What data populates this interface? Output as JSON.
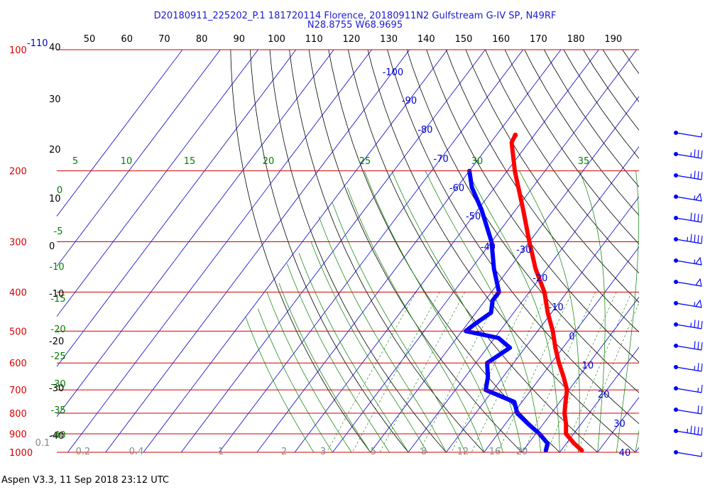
{
  "title_line1": "D20180911_225202_P.1 181720114 Florence, 20180911N2 Gulfstream G-IV SP, N49RF",
  "title_line2": "N28.8755 W68.9695",
  "footer": "Aspen V3.3, 11 Sep 2018  23:12 UTC",
  "colors": {
    "isobar": "#d40000",
    "temperature_profile": "#ff0000",
    "dewpoint_profile": "#0000ff",
    "isotherm": "#0000cc",
    "dry_adiabat": "#000000",
    "moist_adiabat": "#008000",
    "mixing_ratio": "#2e8b2e",
    "mixing_ratio_label": "#888888",
    "title": "#1a1ad6"
  },
  "chart_data": {
    "type": "skew-t log-p sounding",
    "y_axis": {
      "pressure_labels_hPa": [
        "100",
        "200",
        "300",
        "400",
        "500",
        "600",
        "700",
        "800",
        "900",
        "1000"
      ],
      "pressure_values_hPa": [
        100,
        200,
        300,
        400,
        500,
        600,
        700,
        800,
        900,
        1000
      ],
      "altitude_labels": [
        "40",
        "30",
        "20",
        "10",
        "0",
        "-10",
        "-20",
        "-30",
        "-40"
      ],
      "isotherm_top_label": "-110"
    },
    "top_axis_labels": [
      "50",
      "60",
      "70",
      "80",
      "90",
      "100",
      "110",
      "120",
      "130",
      "140",
      "150",
      "160",
      "170",
      "180",
      "190"
    ],
    "isotherm_labels": [
      {
        "text": "-100",
        "t": -100
      },
      {
        "text": "-90",
        "t": -90
      },
      {
        "text": "-80",
        "t": -80
      },
      {
        "text": "-70",
        "t": -70
      },
      {
        "text": "-60",
        "t": -60
      },
      {
        "text": "-50",
        "t": -50
      },
      {
        "text": "-40",
        "t": -40
      },
      {
        "text": "-30",
        "t": -30
      },
      {
        "text": "-20",
        "t": -20
      },
      {
        "text": "-10",
        "t": -10
      },
      {
        "text": "0",
        "t": 0
      },
      {
        "text": "10",
        "t": 10
      },
      {
        "text": "20",
        "t": 20
      },
      {
        "text": "30",
        "t": 30
      },
      {
        "text": "40",
        "t": 40
      }
    ],
    "moist_adiabat_labels": [
      "5",
      "10",
      "15",
      "20",
      "25",
      "30",
      "35",
      "0",
      "-5",
      "-10",
      "-15",
      "-20",
      "-25",
      "-30",
      "-35",
      "-40"
    ],
    "mixing_ratio_labels": [
      "0.1",
      "0.2",
      "0.4",
      "1",
      "2",
      "3",
      "5",
      "8",
      "12",
      "16",
      "20"
    ],
    "temperature": {
      "name": "Temperature",
      "points": [
        [
          163,
          -55
        ],
        [
          170,
          -54.5
        ],
        [
          200,
          -48
        ],
        [
          250,
          -38
        ],
        [
          300,
          -30
        ],
        [
          350,
          -23
        ],
        [
          400,
          -16
        ],
        [
          450,
          -11
        ],
        [
          500,
          -6
        ],
        [
          550,
          -2
        ],
        [
          600,
          2
        ],
        [
          650,
          6
        ],
        [
          700,
          9.5
        ],
        [
          750,
          11.5
        ],
        [
          800,
          13.5
        ],
        [
          850,
          16
        ],
        [
          900,
          18
        ],
        [
          950,
          22
        ],
        [
          990,
          25.5
        ]
      ]
    },
    "dewpoint": {
      "name": "Dewpoint",
      "points": [
        [
          200,
          -60
        ],
        [
          220,
          -56
        ],
        [
          250,
          -49
        ],
        [
          300,
          -40
        ],
        [
          350,
          -34
        ],
        [
          400,
          -28
        ],
        [
          420,
          -28
        ],
        [
          450,
          -26
        ],
        [
          480,
          -28
        ],
        [
          500,
          -29
        ],
        [
          520,
          -19
        ],
        [
          550,
          -14
        ],
        [
          600,
          -17
        ],
        [
          650,
          -14
        ],
        [
          700,
          -12
        ],
        [
          750,
          -2
        ],
        [
          800,
          1
        ],
        [
          850,
          6
        ],
        [
          900,
          11
        ],
        [
          950,
          15
        ],
        [
          990,
          16
        ]
      ]
    }
  },
  "wind_barbs": [
    {
      "speed_kt": 5
    },
    {
      "speed_kt": 35
    },
    {
      "speed_kt": 35
    },
    {
      "speed_kt": 55
    },
    {
      "speed_kt": 40
    },
    {
      "speed_kt": 45
    },
    {
      "speed_kt": 55
    },
    {
      "speed_kt": 50
    },
    {
      "speed_kt": 55
    },
    {
      "speed_kt": 35
    },
    {
      "speed_kt": 30
    },
    {
      "speed_kt": 25
    },
    {
      "speed_kt": 15
    },
    {
      "speed_kt": 20
    },
    {
      "speed_kt": 45
    },
    {
      "speed_kt": 5
    }
  ]
}
